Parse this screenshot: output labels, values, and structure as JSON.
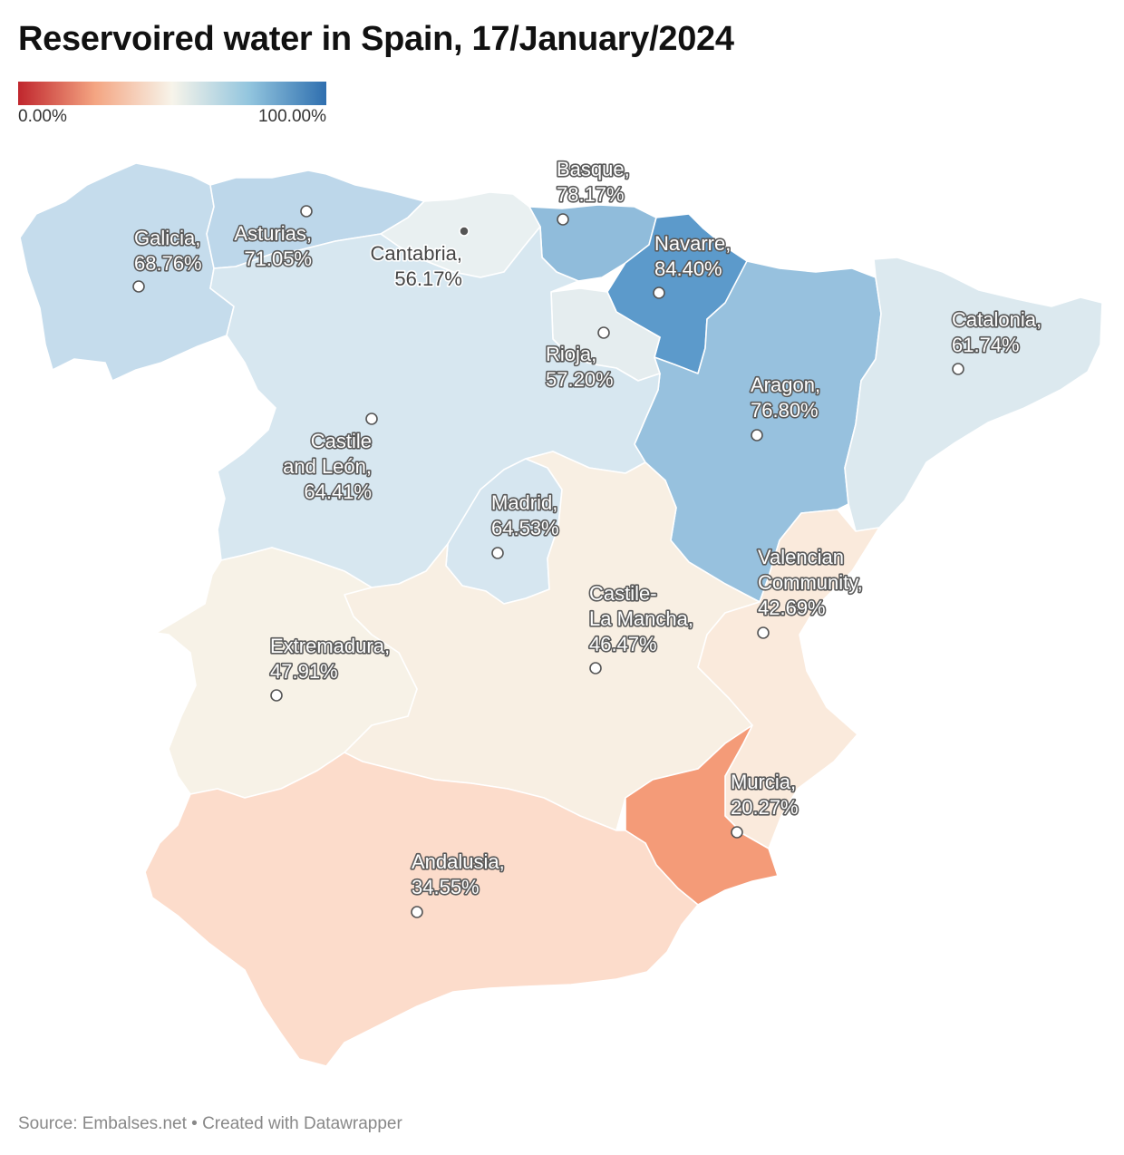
{
  "title": "Reservoired water in Spain, 17/January/2024",
  "legend": {
    "min_label": "0.00%",
    "max_label": "100.00%",
    "colors": [
      "#c0262d",
      "#f4a582",
      "#f7f4ea",
      "#92c5de",
      "#2f6faf"
    ]
  },
  "source": "Source: Embalses.net • Created with Datawrapper",
  "regions": [
    {
      "id": "galicia",
      "lines": [
        "Galicia,",
        "68.76%"
      ],
      "value": 68.76,
      "color": "#c5dcec"
    },
    {
      "id": "asturias",
      "lines": [
        "Asturias,",
        "71.05%"
      ],
      "value": 71.05,
      "color": "#bdd7ea"
    },
    {
      "id": "cantabria",
      "lines": [
        "Cantabria,",
        "56.17%"
      ],
      "value": 56.17,
      "color": "#e9f0f1"
    },
    {
      "id": "basque",
      "lines": [
        "Basque,",
        "78.17%"
      ],
      "value": 78.17,
      "color": "#90bcdb"
    },
    {
      "id": "navarre",
      "lines": [
        "Navarre,",
        "84.40%"
      ],
      "value": 84.4,
      "color": "#5c9acb"
    },
    {
      "id": "rioja",
      "lines": [
        "Rioja,",
        "57.20%"
      ],
      "value": 57.2,
      "color": "#e5edef"
    },
    {
      "id": "aragon",
      "lines": [
        "Aragon,",
        "76.80%"
      ],
      "value": 76.8,
      "color": "#97c1de"
    },
    {
      "id": "catalonia",
      "lines": [
        "Catalonia,",
        "61.74%"
      ],
      "value": 61.74,
      "color": "#dce9ef"
    },
    {
      "id": "castile-leon",
      "lines": [
        "Castile",
        "and León,",
        "64.41%"
      ],
      "value": 64.41,
      "color": "#d7e7f0"
    },
    {
      "id": "madrid",
      "lines": [
        "Madrid,",
        "64.53%"
      ],
      "value": 64.53,
      "color": "#d6e6f0"
    },
    {
      "id": "castile-la-mancha",
      "lines": [
        "Castile-",
        "La Mancha,",
        "46.47%"
      ],
      "value": 46.47,
      "color": "#f8efe3"
    },
    {
      "id": "valencian-community",
      "lines": [
        "Valencian",
        "Community,",
        "42.69%"
      ],
      "value": 42.69,
      "color": "#faeadc"
    },
    {
      "id": "extremadura",
      "lines": [
        "Extremadura,",
        "47.91%"
      ],
      "value": 47.91,
      "color": "#f7f2e7"
    },
    {
      "id": "murcia",
      "lines": [
        "Murcia,",
        "20.27%"
      ],
      "value": 20.27,
      "color": "#f49b78"
    },
    {
      "id": "andalusia",
      "lines": [
        "Andalusia,",
        "34.55%"
      ],
      "value": 34.55,
      "color": "#fcdccb"
    }
  ]
}
